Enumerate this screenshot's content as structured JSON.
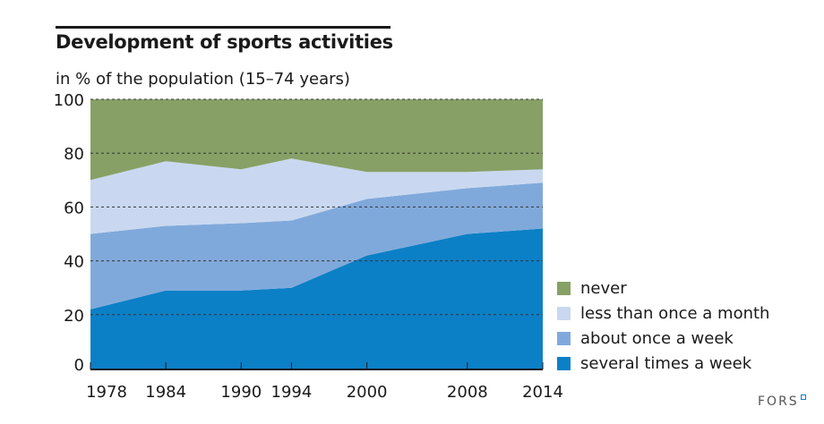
{
  "chart_data": {
    "type": "area",
    "stacked": true,
    "title": "Development of sports activities",
    "subtitle": "in % of the population (15–74 years)",
    "x": [
      1978,
      1984,
      1990,
      1994,
      2000,
      2008,
      2014
    ],
    "xlabels": [
      "1978",
      "1984",
      "1990",
      "1994",
      "2000",
      "2008",
      "2014"
    ],
    "yticks": [
      "0",
      "20",
      "40",
      "60",
      "80",
      "100"
    ],
    "ylim": [
      0,
      100
    ],
    "grid": "horizontal dashed",
    "legend_placement": "right",
    "series": [
      {
        "name": "several times a week",
        "color": "#0c80c6",
        "values": [
          22,
          29,
          29,
          30,
          42,
          50,
          52
        ]
      },
      {
        "name": "about once a week",
        "color": "#80a9db",
        "values": [
          28,
          24,
          25,
          25,
          21,
          17,
          17
        ]
      },
      {
        "name": "less than once a month",
        "color": "#c9d8f0",
        "values": [
          20,
          24,
          20,
          23,
          10,
          6,
          5
        ]
      },
      {
        "name": "never",
        "color": "#87a066",
        "values": [
          30,
          23,
          26,
          22,
          27,
          27,
          26
        ]
      }
    ]
  },
  "legend": [
    "never",
    "less than once a month",
    "about once a week",
    "several times a week"
  ],
  "logo": "FORS"
}
